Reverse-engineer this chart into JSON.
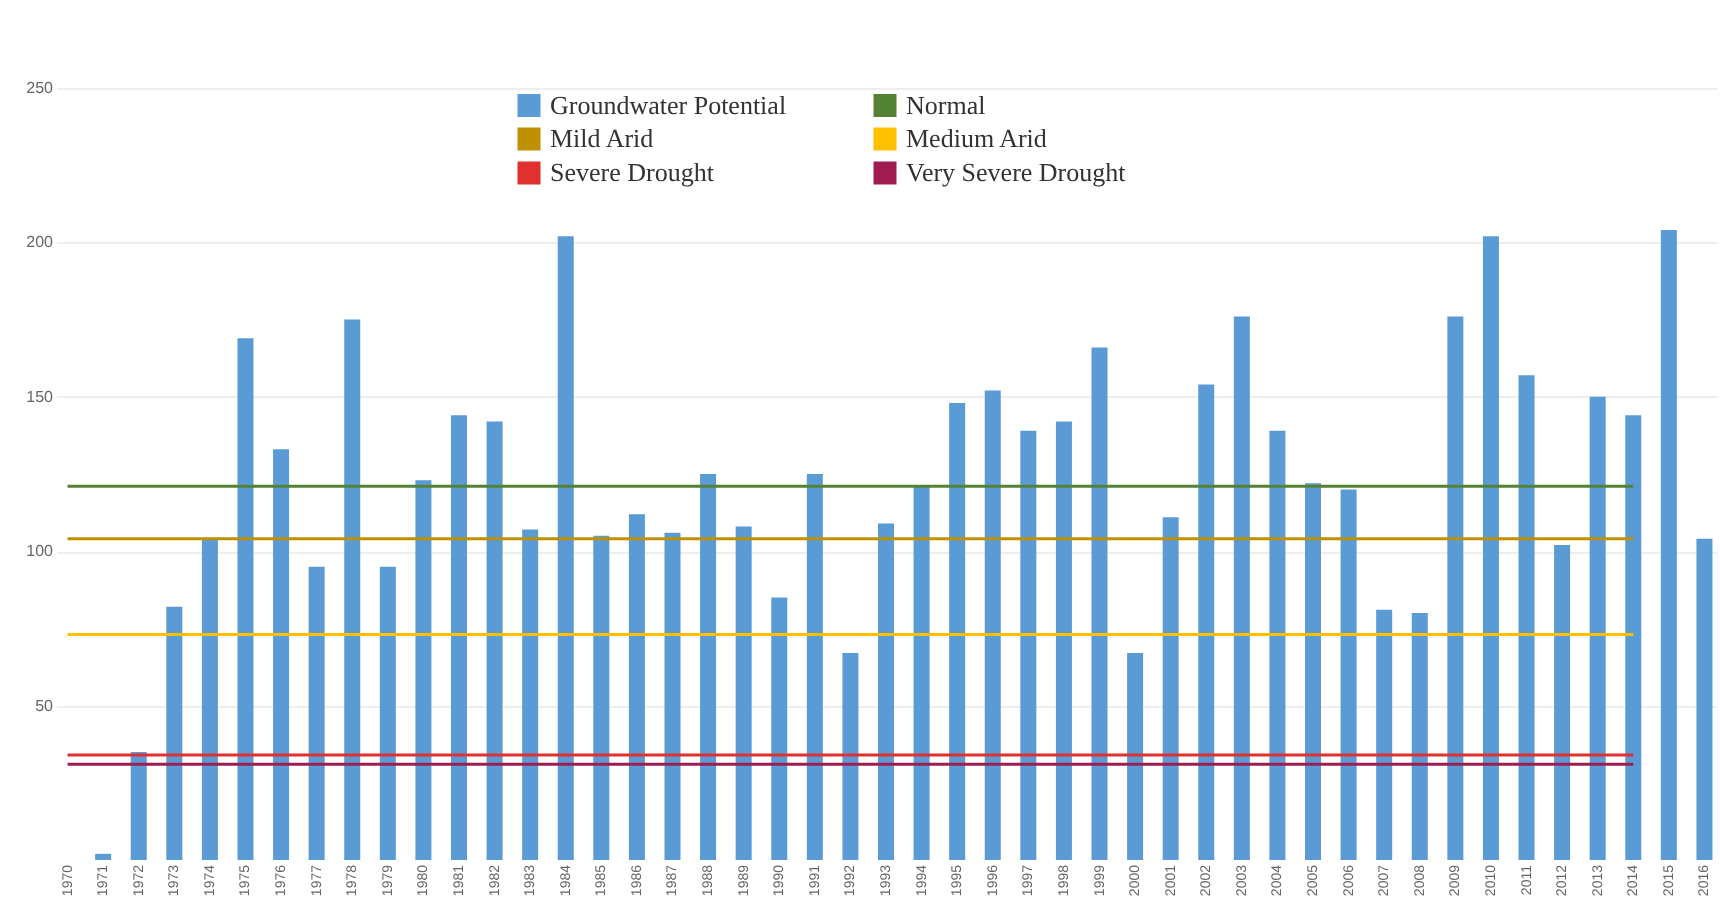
{
  "chart_data": {
    "type": "bar",
    "categories": [
      "1970",
      "1971",
      "1972",
      "1973",
      "1974",
      "1975",
      "1976",
      "1977",
      "1978",
      "1979",
      "1980",
      "1981",
      "1982",
      "1983",
      "1984",
      "1985",
      "1986",
      "1987",
      "1988",
      "1989",
      "1990",
      "1991",
      "1992",
      "1993",
      "1994",
      "1995",
      "1996",
      "1997",
      "1998",
      "1999",
      "2000",
      "2001",
      "2002",
      "2003",
      "2004",
      "2005",
      "2006",
      "2007",
      "2008",
      "2009",
      "2010",
      "2011",
      "2012",
      "2013",
      "2014",
      "2015",
      "2016"
    ],
    "series": [
      {
        "name": "Groundwater Potential",
        "color": "#5b9bd5",
        "values": [
          0,
          2,
          35,
          82,
          104,
          169,
          133,
          95,
          175,
          95,
          123,
          144,
          142,
          107,
          202,
          105,
          112,
          106,
          125,
          108,
          85,
          125,
          67,
          109,
          121,
          148,
          152,
          139,
          142,
          166,
          67,
          111,
          154,
          176,
          139,
          122,
          120,
          81,
          80,
          176,
          202,
          157,
          102,
          150,
          144,
          204,
          104
        ]
      },
      {
        "name": "Normal",
        "type": "line",
        "color": "#548235",
        "values": [
          121,
          121,
          121,
          121,
          121,
          121,
          121,
          121,
          121,
          121,
          121,
          121,
          121,
          121,
          121,
          121,
          121,
          121,
          121,
          121,
          121,
          121,
          121,
          121,
          121,
          121,
          121,
          121,
          121,
          121,
          121,
          121,
          121,
          121,
          121,
          121,
          121,
          121,
          121,
          121,
          121,
          121,
          121,
          121,
          121,
          null,
          null
        ]
      },
      {
        "name": "Mild Arid",
        "type": "line",
        "color": "#bf9000",
        "values": [
          104,
          104,
          104,
          104,
          104,
          104,
          104,
          104,
          104,
          104,
          104,
          104,
          104,
          104,
          104,
          104,
          104,
          104,
          104,
          104,
          104,
          104,
          104,
          104,
          104,
          104,
          104,
          104,
          104,
          104,
          104,
          104,
          104,
          104,
          104,
          104,
          104,
          104,
          104,
          104,
          104,
          104,
          104,
          104,
          104,
          null,
          null
        ]
      },
      {
        "name": "Medium Arid",
        "type": "line",
        "color": "#ffc000",
        "values": [
          73,
          73,
          73,
          73,
          73,
          73,
          73,
          73,
          73,
          73,
          73,
          73,
          73,
          73,
          73,
          73,
          73,
          73,
          73,
          73,
          73,
          73,
          73,
          73,
          73,
          73,
          73,
          73,
          73,
          73,
          73,
          73,
          73,
          73,
          73,
          73,
          73,
          73,
          73,
          73,
          73,
          73,
          73,
          73,
          73,
          null,
          null
        ]
      },
      {
        "name": "Severe Drought",
        "type": "line",
        "color": "#e03030",
        "values": [
          34,
          34,
          34,
          34,
          34,
          34,
          34,
          34,
          34,
          34,
          34,
          34,
          34,
          34,
          34,
          34,
          34,
          34,
          34,
          34,
          34,
          34,
          34,
          34,
          34,
          34,
          34,
          34,
          34,
          34,
          34,
          34,
          34,
          34,
          34,
          34,
          34,
          34,
          34,
          34,
          34,
          34,
          34,
          34,
          34,
          null,
          null
        ]
      },
      {
        "name": "Very Severe Drought",
        "type": "line",
        "color": "#a01c50",
        "values": [
          31,
          31,
          31,
          31,
          31,
          31,
          31,
          31,
          31,
          31,
          31,
          31,
          31,
          31,
          31,
          31,
          31,
          31,
          31,
          31,
          31,
          31,
          31,
          31,
          31,
          31,
          31,
          31,
          31,
          31,
          31,
          31,
          31,
          31,
          31,
          31,
          31,
          31,
          31,
          31,
          31,
          31,
          31,
          31,
          31,
          null,
          null
        ]
      }
    ],
    "ylim": [
      0,
      250
    ],
    "yticks": [
      50,
      100,
      150,
      200,
      250
    ],
    "grid": "y",
    "legend": "top"
  }
}
